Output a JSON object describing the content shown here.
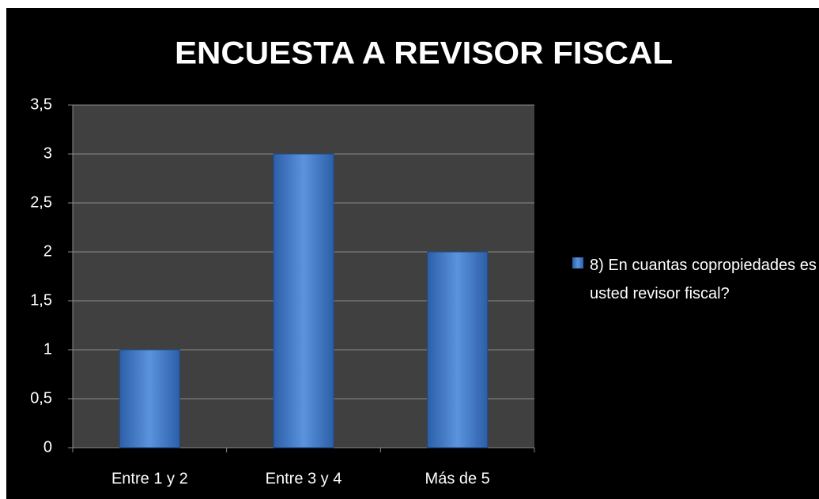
{
  "chart_data": {
    "type": "bar",
    "title": "ENCUESTA A REVISOR FISCAL",
    "categories": [
      "Entre 1 y 2",
      "Entre 3 y 4",
      "Más de 5"
    ],
    "series": [
      {
        "name": "8) En cuantas copropiedades es usted revisor fiscal?",
        "color": "#4a7fcb",
        "values": [
          1,
          3,
          2
        ]
      }
    ],
    "ylim": [
      0,
      3.5
    ],
    "yticks": [
      0,
      {
        "value": 0.5,
        "label": "0,5"
      },
      1,
      {
        "value": 1.5,
        "label": "1,5"
      },
      2,
      {
        "value": 2.5,
        "label": "2,5"
      },
      3,
      {
        "value": 3.5,
        "label": "3,5"
      }
    ],
    "grid": true,
    "legend": "right"
  }
}
